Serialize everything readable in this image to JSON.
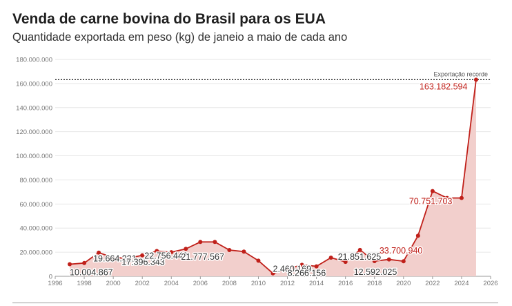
{
  "title": "Venda de carne bovina do Brasil para os EUA",
  "subtitle": "Quantidade exportada em peso (kg) de janeio a maio de cada ano",
  "colors": {
    "line": "#c0201a",
    "area": "#f2cfcc",
    "grid": "#e6e6e6",
    "text": "#333333"
  },
  "chart_data": {
    "type": "area",
    "title": "Venda de carne bovina do Brasil para os EUA",
    "subtitle": "Quantidade exportada em peso (kg) de janeio a maio de cada ano",
    "xlabel": "",
    "ylabel": "",
    "xlim": [
      1996,
      2026
    ],
    "ylim": [
      0,
      180000000
    ],
    "x_ticks": [
      "1996",
      "1998",
      "2000",
      "2002",
      "2004",
      "2006",
      "2008",
      "2010",
      "2012",
      "2014",
      "2016",
      "2018",
      "2020",
      "2022",
      "2024",
      "2026"
    ],
    "y_ticks": [
      "0",
      "20.000.000",
      "40.000.000",
      "60.000.000",
      "80.000.000",
      "100.000.000",
      "120.000.000",
      "140.000.000",
      "160.000.000",
      "180.000.000"
    ],
    "grid": true,
    "series": [
      {
        "x": [
          1997,
          1998,
          1999,
          2000,
          2001,
          2002,
          2003,
          2004,
          2005,
          2006,
          2007,
          2008,
          2009,
          2010,
          2011,
          2012,
          2013,
          2014,
          2015,
          2016,
          2017,
          2018,
          2019,
          2020,
          2021,
          2022,
          2023,
          2024,
          2025
        ],
        "values": [
          10004867,
          11000000,
          19664221,
          15500000,
          15000000,
          17396343,
          21000000,
          20000000,
          22756442,
          28500000,
          28500000,
          21777567,
          20500000,
          13000000,
          2460169,
          6000000,
          9500000,
          8266156,
          15500000,
          12000000,
          21851625,
          12592025,
          14000000,
          12500000,
          33700940,
          70751703,
          65000000,
          65000000,
          163182594
        ]
      }
    ],
    "data_labels": [
      {
        "x": 1997,
        "text": "10.004.867"
      },
      {
        "x": 1999,
        "text": "19.664.221"
      },
      {
        "x": 2002,
        "text": "17.396.343"
      },
      {
        "x": 2005,
        "text": "22.756.442"
      },
      {
        "x": 2008,
        "text": "21.777.567"
      },
      {
        "x": 2011,
        "text": "2.460.169"
      },
      {
        "x": 2014,
        "text": "8.266.156"
      },
      {
        "x": 2017,
        "text": "21.851.625"
      },
      {
        "x": 2018,
        "text": "12.592.025"
      },
      {
        "x": 2021,
        "text": "33.700.940"
      },
      {
        "x": 2022,
        "text": "70.751.703"
      },
      {
        "x": 2025,
        "text": "163.182.594"
      }
    ],
    "reference_line": {
      "y": 163182594,
      "label": "Exportação recorde"
    }
  }
}
